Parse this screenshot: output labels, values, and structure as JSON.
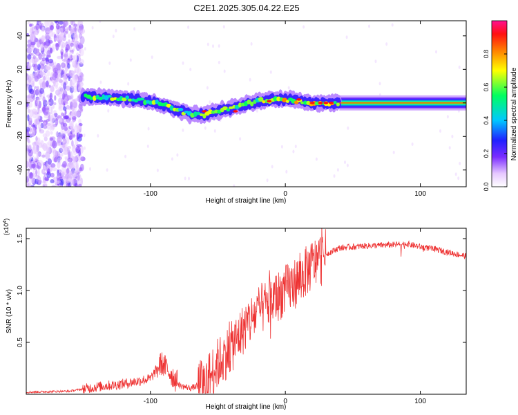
{
  "title": "C2E1.2025.305.04.22.E25",
  "chart_data": [
    {
      "type": "heatmap",
      "name": "spectrogram",
      "xlabel": "Height of straight line (km)",
      "ylabel": "Frequency (Hz)",
      "xlim": [
        -192,
        134
      ],
      "ylim": [
        -50,
        49
      ],
      "xticks": [
        -100,
        0,
        100
      ],
      "xtick_labels": [
        "-100",
        "0",
        "100"
      ],
      "yticks": [
        -40,
        -20,
        0,
        20,
        40
      ],
      "ytick_labels": [
        "-40",
        "-20",
        "0",
        "20",
        "40"
      ],
      "ridge": {
        "description_points_x": [
          -150,
          -130,
          -110,
          -95,
          -80,
          -70,
          -60,
          -50,
          -40,
          -30,
          -20,
          -10,
          0,
          10,
          20,
          30,
          40,
          134
        ],
        "description_points_y": [
          4,
          3,
          2,
          0,
          -4,
          -7,
          -7,
          -5,
          -3,
          -1,
          1,
          2,
          2,
          1,
          0,
          0,
          0,
          0
        ]
      },
      "noise_region_x": [
        -192,
        -150
      ],
      "colorbar": {
        "label": "Normalized spectral amplitude",
        "range": [
          0.0,
          1.0
        ],
        "ticks": [
          0.0,
          0.2,
          0.4,
          0.6,
          0.8
        ],
        "tick_labels": [
          "0.0",
          "0.2",
          "0.4",
          "0.6",
          "0.8"
        ]
      }
    },
    {
      "type": "line",
      "name": "snr",
      "xlabel": "Height of straight line (km)",
      "ylabel": "SNR (10 * v/v)",
      "scale_label": "(x10⁴)",
      "xlim": [
        -192,
        134
      ],
      "ylim": [
        0,
        1.6
      ],
      "xticks": [
        -100,
        0,
        100
      ],
      "xtick_labels": [
        "-100",
        "0",
        "100"
      ],
      "yticks": [
        0.5,
        1.0,
        1.5
      ],
      "ytick_labels": [
        "0.5",
        "1.0",
        "1.5"
      ],
      "color": "#ee3333",
      "envelope_x": [
        -192,
        -160,
        -140,
        -120,
        -100,
        -92,
        -88,
        -82,
        -78,
        -70,
        -60,
        -55,
        -50,
        -40,
        -30,
        -20,
        -10,
        0,
        10,
        20,
        30,
        40,
        60,
        80,
        90,
        100,
        110,
        120,
        134
      ],
      "envelope_y": [
        0.02,
        0.03,
        0.07,
        0.1,
        0.15,
        0.3,
        0.25,
        0.15,
        0.08,
        0.06,
        0.1,
        0.2,
        0.3,
        0.45,
        0.65,
        0.8,
        0.9,
        1.0,
        1.1,
        1.25,
        1.35,
        1.41,
        1.43,
        1.44,
        1.45,
        1.42,
        1.4,
        1.37,
        1.33
      ]
    }
  ]
}
